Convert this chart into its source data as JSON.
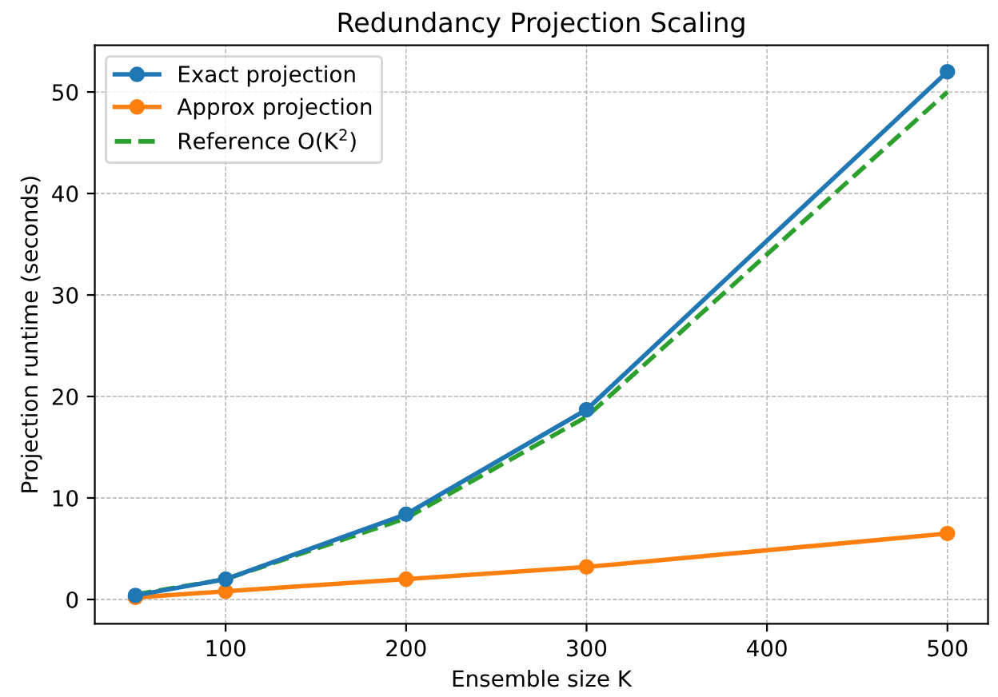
{
  "chart_data": {
    "type": "line",
    "title": "Redundancy Projection Scaling",
    "xlabel": "Ensemble size K",
    "ylabel": "Projection runtime (seconds)",
    "x": [
      50,
      100,
      200,
      300,
      500
    ],
    "series": [
      {
        "name": "Exact projection",
        "color": "#1f77b4",
        "values": [
          0.4,
          2.0,
          8.4,
          18.7,
          52.0
        ],
        "marker": "circle",
        "line_style": "solid"
      },
      {
        "name": "Approx projection",
        "color": "#ff7f0e",
        "values": [
          0.2,
          0.8,
          2.0,
          3.2,
          6.5
        ],
        "marker": "circle",
        "line_style": "solid"
      },
      {
        "name": "Reference O(K$^{2}$)",
        "color": "#2ca02c",
        "values": [
          0.5,
          2.0,
          8.0,
          18.0,
          50.0
        ],
        "marker": "none",
        "line_style": "dashed"
      }
    ],
    "xlim": [
      27.5,
      522.5
    ],
    "ylim": [
      -2.4,
      54.6
    ],
    "xticks": [
      100,
      200,
      300,
      400,
      500
    ],
    "yticks": [
      0,
      10,
      20,
      30,
      40,
      50
    ],
    "grid": true,
    "legend": "top left"
  }
}
